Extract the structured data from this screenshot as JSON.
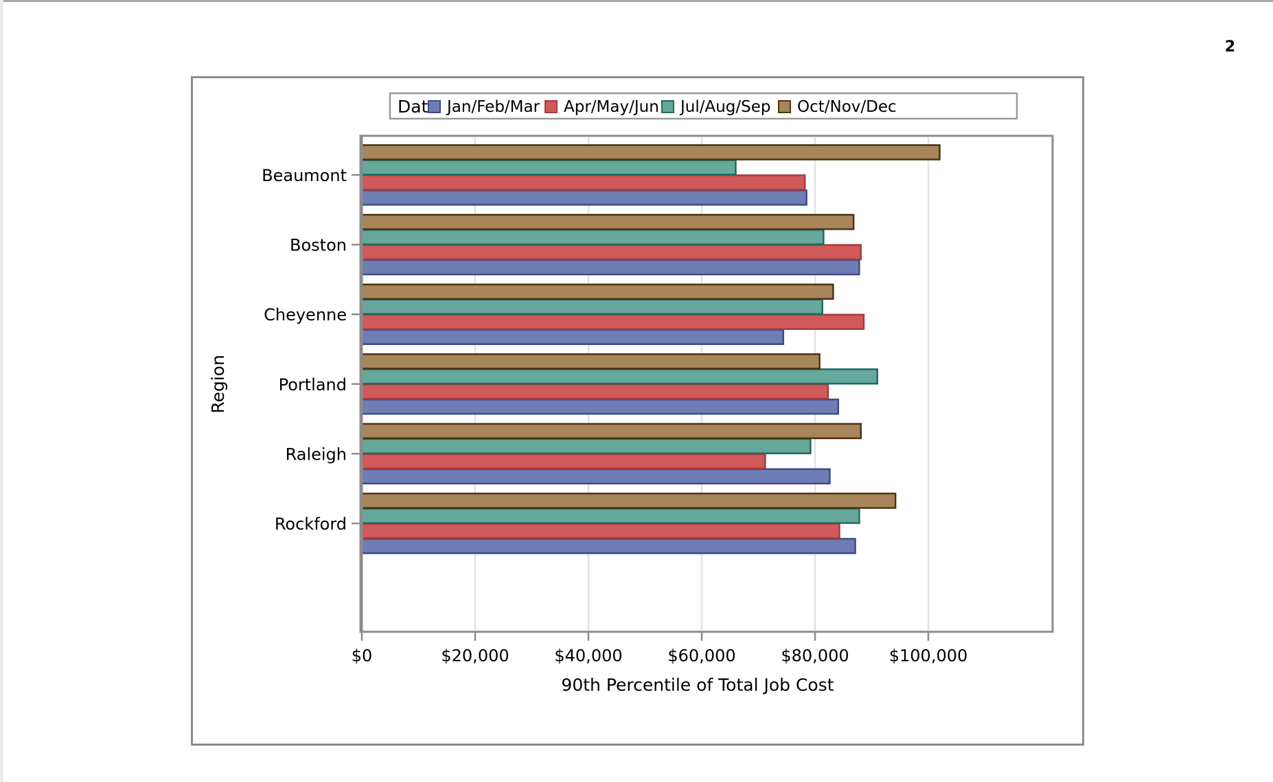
{
  "page": {
    "number": "2"
  },
  "chart_data": {
    "type": "bar",
    "orientation": "horizontal",
    "title": "",
    "xlabel": "90th Percentile of Total Job Cost",
    "ylabel": "Region",
    "legend_title": "Date",
    "legend_position": "top",
    "grid": true,
    "xlim": [
      0,
      103000
    ],
    "x_ticks": [
      0,
      20000,
      40000,
      60000,
      80000,
      100000
    ],
    "x_tick_labels": [
      "$0",
      "$20,000",
      "$40,000",
      "$60,000",
      "$80,000",
      "$100,000"
    ],
    "categories": [
      "Beaumont",
      "Boston",
      "Cheyenne",
      "Portland",
      "Raleigh",
      "Rockford"
    ],
    "series": [
      {
        "name": "Jan/Feb/Mar",
        "color": "#6f7db5",
        "stroke": "#3d4a8c",
        "values": [
          78500,
          87800,
          74400,
          84100,
          82600,
          87100
        ]
      },
      {
        "name": "Apr/May/Jun",
        "color": "#d05a5a",
        "stroke": "#a83a3a",
        "values": [
          78200,
          88100,
          88600,
          82300,
          71200,
          84300
        ]
      },
      {
        "name": "Jul/Aug/Sep",
        "color": "#66a89c",
        "stroke": "#1e6b60",
        "values": [
          66000,
          81500,
          81300,
          91000,
          79200,
          87800
        ]
      },
      {
        "name": "Oct/Nov/Dec",
        "color": "#a8865a",
        "stroke": "#4a3212",
        "values": [
          102000,
          86800,
          83200,
          80800,
          88100,
          94200
        ]
      }
    ]
  }
}
